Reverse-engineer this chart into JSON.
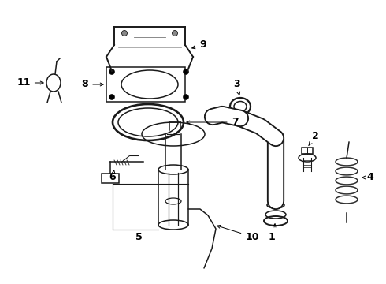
{
  "bg_color": "#ffffff",
  "lc": "#1a1a1a",
  "lw": 1.1
}
